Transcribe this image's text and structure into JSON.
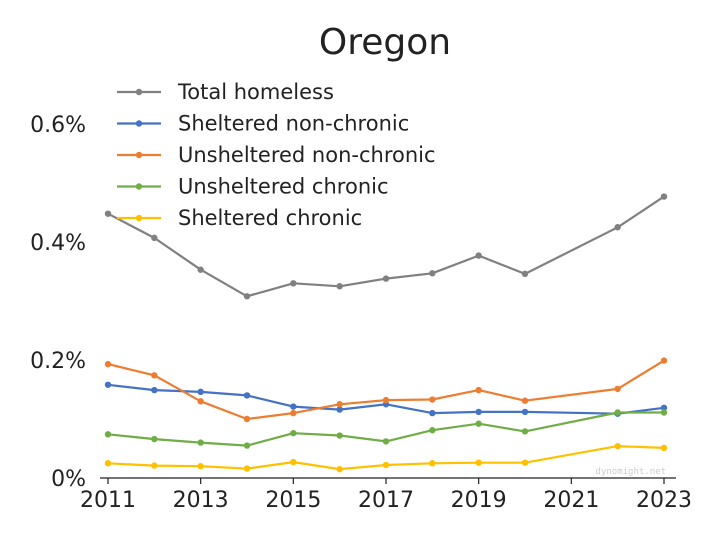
{
  "chart_data": {
    "type": "line",
    "title": "Oregon",
    "xlabel": "",
    "ylabel": "",
    "x": [
      2011,
      2012,
      2013,
      2014,
      2015,
      2016,
      2017,
      2018,
      2019,
      2020,
      2022,
      2023
    ],
    "xticks": [
      2011,
      2013,
      2015,
      2017,
      2019,
      2021,
      2023
    ],
    "xlim": [
      2011,
      2023
    ],
    "yticks": [
      0,
      0.2,
      0.4,
      0.6
    ],
    "ytick_labels": [
      "0%",
      "0.2%",
      "0.4%",
      "0.6%"
    ],
    "ylim": [
      0,
      0.6
    ],
    "grid": false,
    "legend_position": "top-left",
    "series": [
      {
        "name": "Total homeless",
        "color": "#808080",
        "values": [
          0.448,
          0.407,
          0.353,
          0.308,
          0.33,
          0.325,
          0.338,
          0.347,
          0.377,
          0.346,
          0.425,
          0.477
        ]
      },
      {
        "name": "Sheltered non-chronic",
        "color": "#4472c4",
        "values": [
          0.158,
          0.149,
          0.146,
          0.14,
          0.121,
          0.116,
          0.125,
          0.11,
          0.112,
          0.112,
          0.109,
          0.119
        ]
      },
      {
        "name": "Unsheltered non-chronic",
        "color": "#ed7d31",
        "values": [
          0.193,
          0.174,
          0.13,
          0.1,
          0.11,
          0.125,
          0.132,
          0.133,
          0.149,
          0.131,
          0.151,
          0.199
        ]
      },
      {
        "name": "Unsheltered chronic",
        "color": "#70ad47",
        "values": [
          0.074,
          0.066,
          0.06,
          0.055,
          0.076,
          0.072,
          0.062,
          0.081,
          0.092,
          0.079,
          0.111,
          0.111
        ]
      },
      {
        "name": "Sheltered chronic",
        "color": "#ffc000",
        "values": [
          0.025,
          0.021,
          0.02,
          0.016,
          0.027,
          0.015,
          0.022,
          0.025,
          0.026,
          0.026,
          0.054,
          0.051
        ]
      }
    ]
  },
  "watermark": "dynomight.net"
}
